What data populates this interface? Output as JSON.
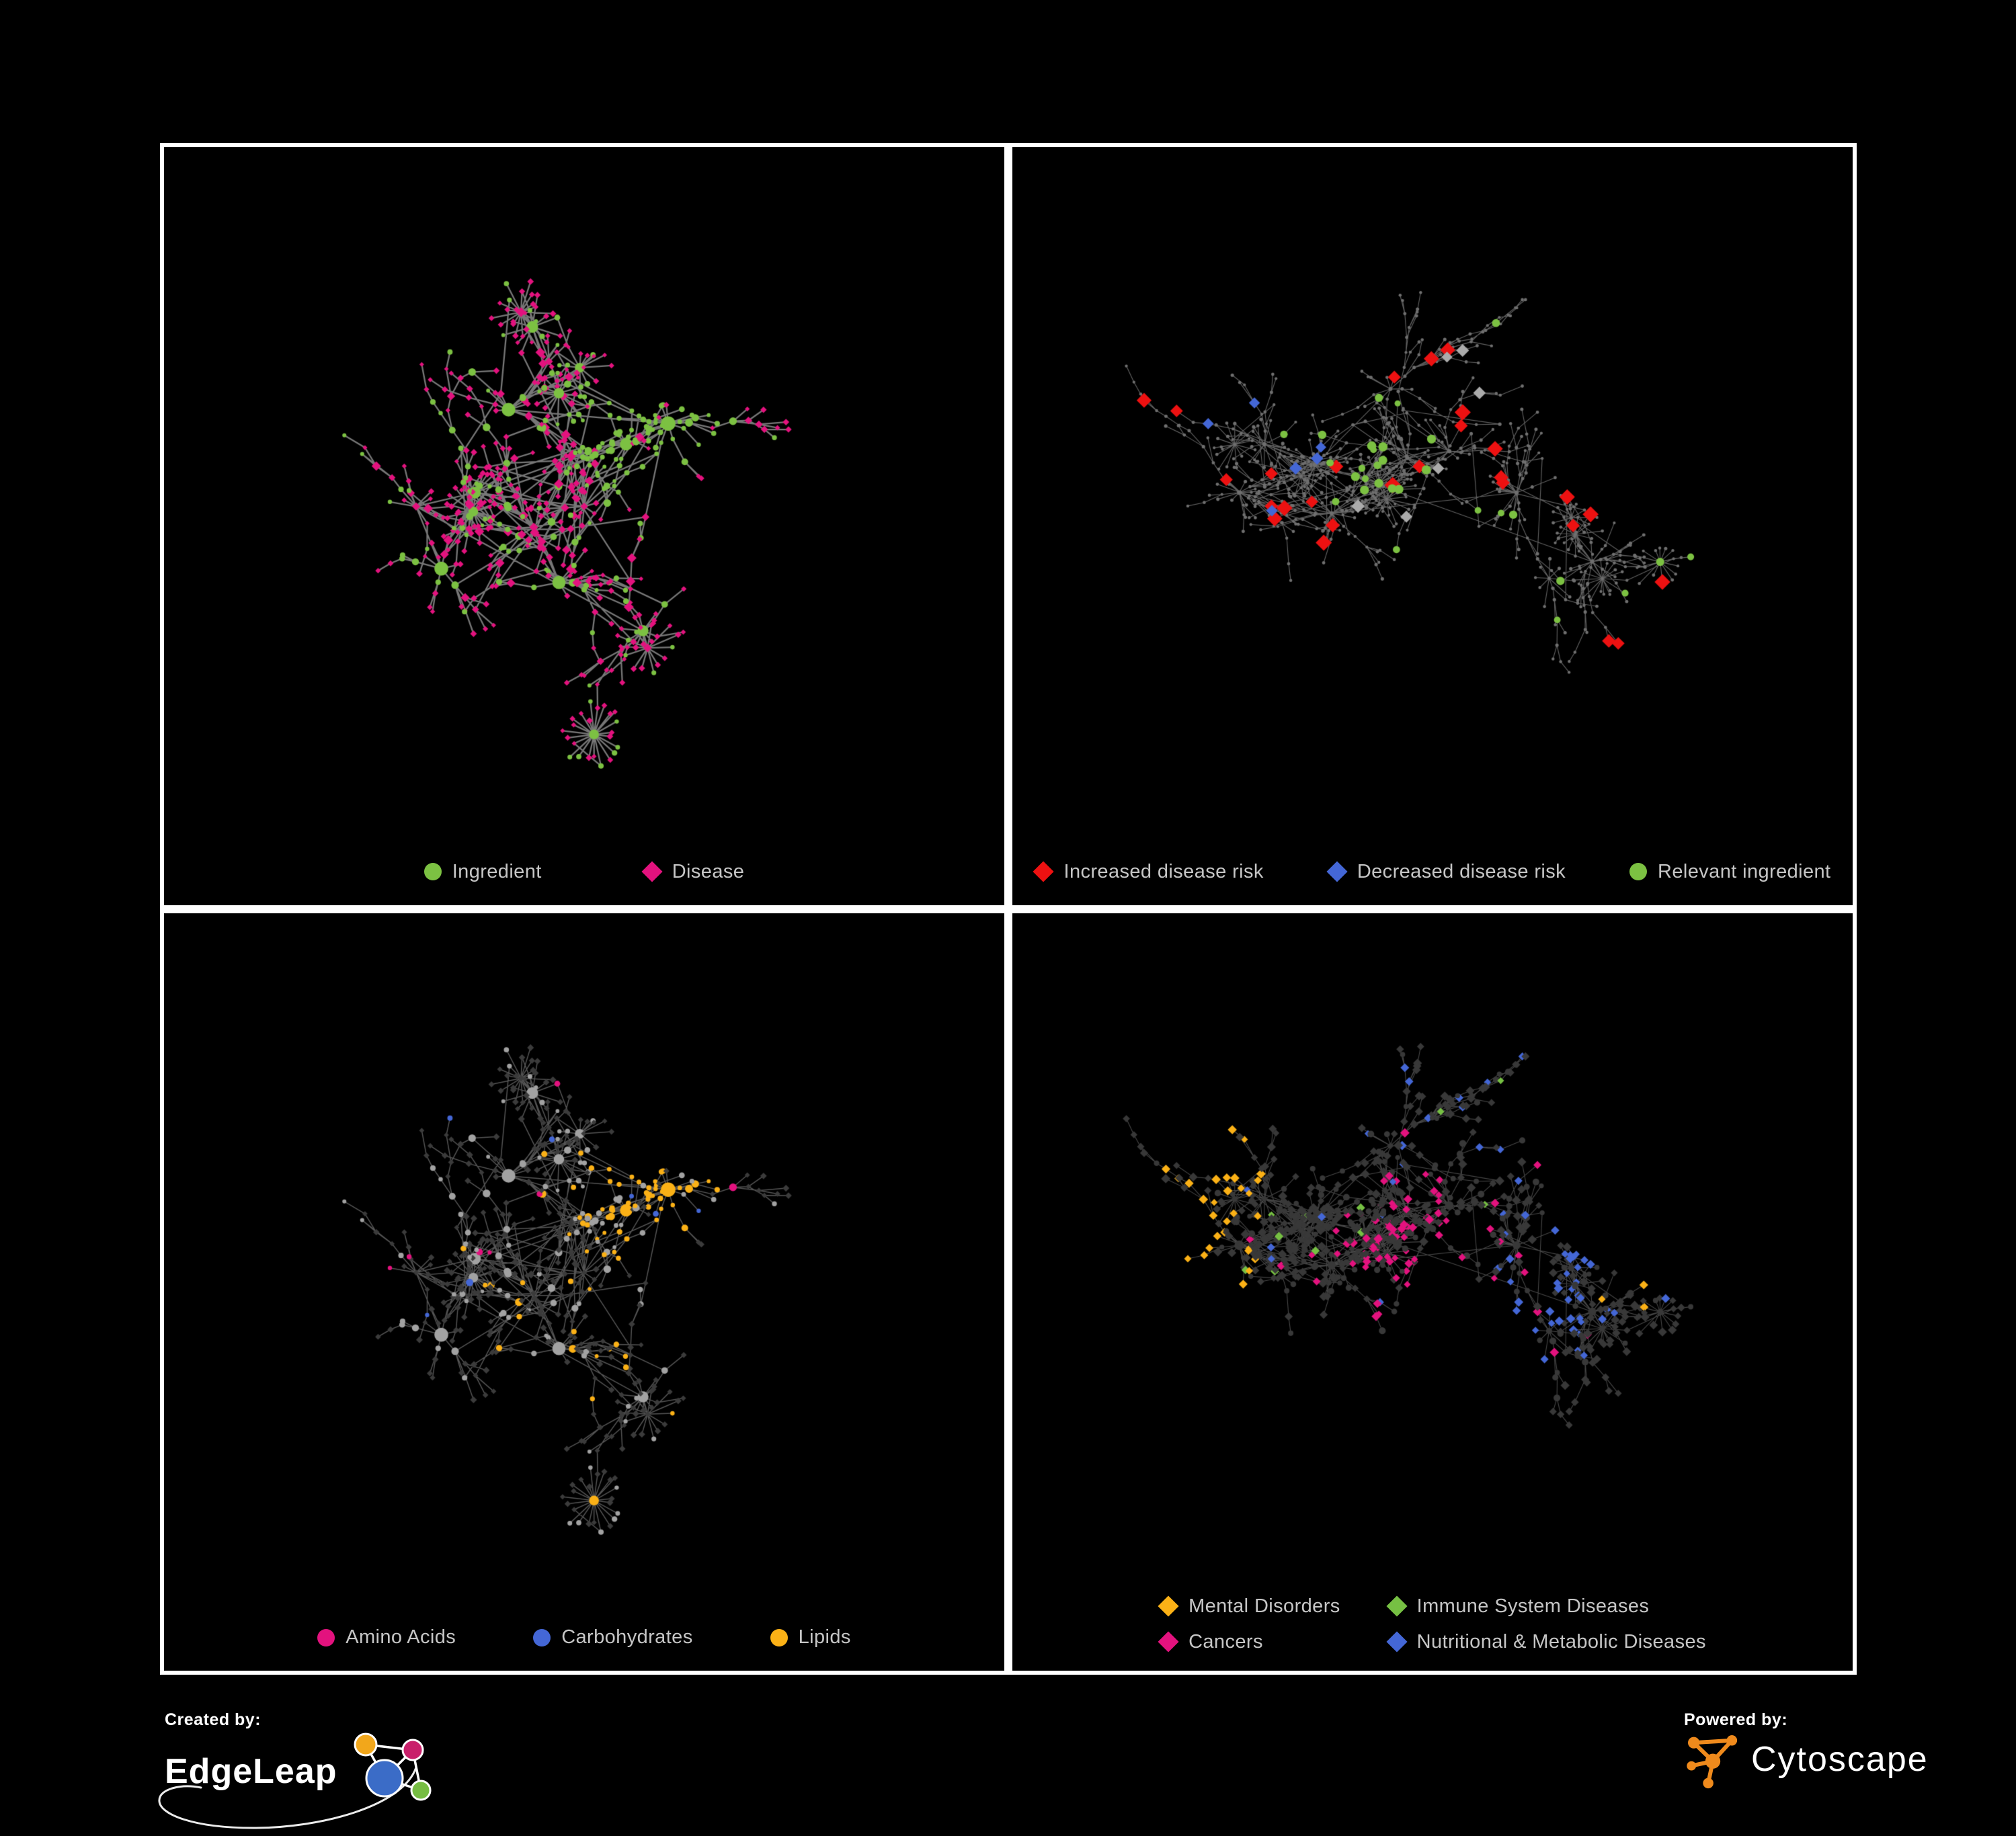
{
  "figure": {
    "background": "#000000",
    "panel_border_color": "#ffffff",
    "legend_text_color": "#c6c6c6"
  },
  "network_layouts": {
    "A": {
      "seed": 42,
      "hubs": [
        [
          0.3,
          0.52
        ],
        [
          0.37,
          0.5
        ],
        [
          0.44,
          0.55
        ],
        [
          0.5,
          0.52
        ],
        [
          0.55,
          0.43
        ],
        [
          0.6,
          0.4
        ],
        [
          0.47,
          0.63
        ],
        [
          0.33,
          0.61
        ],
        [
          0.57,
          0.7
        ],
        [
          0.41,
          0.38
        ]
      ],
      "grow": 480,
      "step": 26,
      "jitter": 1.25,
      "tipBias": 0.55,
      "tipPool": 70,
      "stars": 7,
      "starMin": 10,
      "starMax": 24,
      "starR": 36,
      "cross": 60,
      "crossDist": 150,
      "ingredientCluster": [
        0.585,
        0.4,
        0.1
      ],
      "ingredientProb": {
        "hub": 0.85,
        "cluster": 0.85,
        "mid": 0.3,
        "leaf": 0.2
      }
    },
    "B": {
      "seed": 7,
      "hubs": [
        [
          0.3,
          0.43
        ],
        [
          0.36,
          0.46
        ],
        [
          0.42,
          0.48
        ],
        [
          0.47,
          0.45
        ],
        [
          0.52,
          0.44
        ],
        [
          0.38,
          0.53
        ],
        [
          0.27,
          0.5
        ],
        [
          0.6,
          0.5
        ],
        [
          0.69,
          0.6
        ],
        [
          0.45,
          0.35
        ]
      ],
      "grow": 660,
      "step": 24,
      "jitter": 1.05,
      "tipBias": 0.63,
      "tipPool": 90,
      "stars": 9,
      "starMin": 8,
      "starMax": 22,
      "starR": 32,
      "cross": 46,
      "crossDist": 150,
      "ingredientCluster": [
        0.45,
        0.45,
        0.12
      ],
      "ingredientProb": {
        "hub": 0.7,
        "cluster": 0.4,
        "mid": 0.25,
        "leaf": 0.12
      }
    }
  },
  "panels": [
    {
      "name": "ingredient-disease-network",
      "layout": "A",
      "paint_seed": 101,
      "legend": [
        {
          "shape": "circle",
          "color": "#7CC142",
          "label": "Ingredient"
        },
        {
          "shape": "diamond",
          "color": "#E3127E",
          "label": "Disease"
        }
      ],
      "style": {
        "edge": {
          "color": "#7d7d7d",
          "alpha": 0.95,
          "width": 2.3
        },
        "ingredient": {
          "shape": "circle",
          "color": "#7CC142"
        },
        "disease": {
          "shape": "diamond",
          "color": "#E3127E"
        }
      }
    },
    {
      "name": "disease-risk-network",
      "layout": "B",
      "paint_seed": 202,
      "legend": [
        {
          "shape": "diamond",
          "color": "#ED1111",
          "label": "Increased disease risk"
        },
        {
          "shape": "diamond",
          "color": "#4467D6",
          "label": "Decreased disease risk"
        },
        {
          "shape": "circle",
          "color": "#7CC142",
          "label": "Relevant ingredient"
        }
      ],
      "style": {
        "edge": {
          "color": "#6a6a6a",
          "alpha": 0.9,
          "width": 1.15
        },
        "base": {
          "color": "#6f6f6f",
          "r": 2.1
        },
        "highlights": [
          {
            "shape": "diamond",
            "color": "#ED1111",
            "type": "d",
            "count": 22,
            "region": [
              0.4,
              0.47,
              0.3
            ],
            "size": [
              9,
              3.5
            ]
          },
          {
            "shape": "diamond",
            "color": "#ED1111",
            "type": "d",
            "count": 3,
            "region": [
              0.7,
              0.63,
              0.18
            ],
            "size": [
              9,
              3
            ]
          },
          {
            "shape": "diamond",
            "color": "#ED1111",
            "type": "d",
            "count": 2,
            "region": [
              0.8,
              0.84,
              0.14
            ],
            "size": [
              9,
              3
            ]
          },
          {
            "shape": "diamond",
            "color": "#4467D6",
            "type": "d",
            "count": 6,
            "region": [
              0.26,
              0.5,
              0.13
            ],
            "size": [
              8,
              2.5
            ]
          },
          {
            "shape": "diamond",
            "color": "#4467D6",
            "type": "d",
            "count": 2,
            "region": [
              0.87,
              0.28,
              0.08
            ],
            "size": [
              8,
              2.5
            ]
          },
          {
            "shape": "diamond",
            "color": "#ABABAB",
            "type": "d",
            "count": 6,
            "region": [
              0.43,
              0.53,
              0.28
            ],
            "size": [
              8,
              2.5
            ]
          },
          {
            "shape": "circle",
            "color": "#7CC142",
            "type": "i",
            "count": 24,
            "region": [
              0.43,
              0.45,
              0.3
            ],
            "size": [
              4.5,
              2.5
            ]
          },
          {
            "shape": "circle",
            "color": "#7CC142",
            "type": "i",
            "count": 6,
            "region": [
              0.72,
              0.7,
              0.22
            ],
            "size": [
              4.5,
              2.5
            ]
          },
          {
            "shape": "circle",
            "color": "#7CC142",
            "type": "i",
            "count": 3,
            "region": [
              0.13,
              0.53,
              0.1
            ],
            "size": [
              4.5,
              2
            ]
          }
        ]
      }
    },
    {
      "name": "nutrient-class-network",
      "layout": "A",
      "paint_seed": 303,
      "legend": [
        {
          "shape": "circle",
          "color": "#E3127E",
          "label": "Amino Acids"
        },
        {
          "shape": "circle",
          "color": "#4467D6",
          "label": "Carbohydrates"
        },
        {
          "shape": "circle",
          "color": "#FBB116",
          "label": "Lipids"
        }
      ],
      "style": {
        "edge": {
          "color": "#a8a8a8",
          "alpha": 0.5,
          "width": 1.5
        },
        "ingredient": {
          "shape": "circle",
          "color": "#A2A2A2"
        },
        "disease": {
          "shape": "diamond",
          "color": "#3B3B3B"
        },
        "categories": [
          {
            "color": "#FBB116",
            "target": "i",
            "base": 0.04,
            "anchors": [
              [
                0.585,
                0.4,
                0.11,
                0.9
              ],
              [
                0.48,
                0.53,
                0.16,
                0.4
              ],
              [
                0.56,
                0.66,
                0.12,
                0.35
              ]
            ]
          },
          {
            "color": "#E3127E",
            "target": "i",
            "base": 0.06,
            "anchors": [
              [
                0.78,
                0.78,
                0.2,
                0.25
              ],
              [
                0.28,
                0.78,
                0.2,
                0.15
              ]
            ]
          },
          {
            "color": "#4467D6",
            "target": "i",
            "base": 0.012,
            "anchors": [
              [
                0.6,
                0.42,
                0.09,
                0.4
              ]
            ]
          }
        ]
      }
    },
    {
      "name": "disease-class-network",
      "layout": "B",
      "paint_seed": 404,
      "legend": [
        {
          "shape": "diamond",
          "color": "#FBB116",
          "label": "Mental Disorders"
        },
        {
          "shape": "diamond",
          "color": "#76C043",
          "label": "Immune System Diseases"
        },
        {
          "shape": "diamond",
          "color": "#E3127E",
          "label": "Cancers"
        },
        {
          "shape": "diamond",
          "color": "#4467D6",
          "label": "Nutritional & Metabolic Diseases"
        }
      ],
      "style": {
        "edge": {
          "color": "#b2b2b2",
          "alpha": 0.4,
          "width": 1.1
        },
        "ingredient": {
          "shape": "circle",
          "color": "#383838"
        },
        "disease": {
          "shape": "diamond",
          "color": "#383838"
        },
        "categories": [
          {
            "color": "#FBB116",
            "target": "d",
            "base": 0.02,
            "anchors": [
              [
                0.155,
                0.47,
                0.14,
                0.95
              ],
              [
                0.19,
                0.39,
                0.12,
                0.6
              ],
              [
                0.1,
                0.55,
                0.1,
                0.6
              ]
            ]
          },
          {
            "color": "#E3127E",
            "target": "d",
            "base": 0.02,
            "anchors": [
              [
                0.47,
                0.54,
                0.12,
                0.85
              ],
              [
                0.53,
                0.61,
                0.1,
                0.6
              ],
              [
                0.88,
                0.27,
                0.08,
                0.6
              ]
            ]
          },
          {
            "color": "#4467D6",
            "target": "d",
            "base": 0.03,
            "anchors": [
              [
                0.63,
                0.58,
                0.1,
                0.85
              ],
              [
                0.76,
                0.33,
                0.22,
                0.3
              ],
              [
                0.56,
                0.12,
                0.25,
                0.25
              ],
              [
                0.42,
                0.86,
                0.22,
                0.15
              ]
            ]
          },
          {
            "color": "#76C043",
            "target": "d",
            "base": 0.012,
            "anchors": [
              [
                0.5,
                0.45,
                0.25,
                0.05
              ]
            ]
          }
        ]
      }
    }
  ],
  "footer": {
    "created_by": "Created by:",
    "brand": "EdgeLeap",
    "powered_by": "Powered by:",
    "engine": "Cytoscape",
    "edgeleap_colors": {
      "orange": "#F2A71B",
      "pink": "#C9206B",
      "blue": "#3B6CC7",
      "green": "#76BD43"
    },
    "cytoscape_orange": "#EF8A1C",
    "line_white": "#ffffff"
  }
}
